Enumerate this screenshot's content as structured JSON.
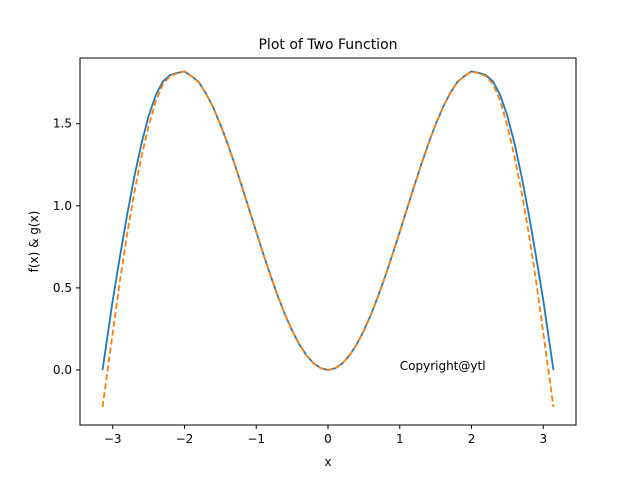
{
  "chart_data": {
    "type": "line",
    "title": "Plot of Two Function",
    "xlabel": "x",
    "ylabel": "f(x) & g(x)",
    "xlim": [
      -3.4558,
      3.4558
    ],
    "ylim": [
      -0.3354,
      1.9004
    ],
    "x_ticks": [
      -3,
      -2,
      -1,
      0,
      1,
      2,
      3
    ],
    "x_tick_labels": [
      "−3",
      "−2",
      "−1",
      "0",
      "1",
      "2",
      "3"
    ],
    "y_ticks": [
      0.0,
      0.5,
      1.0,
      1.5
    ],
    "y_tick_labels": [
      "0.0",
      "0.5",
      "1.0",
      "1.5"
    ],
    "grid": false,
    "legend": "none",
    "annotation": {
      "text": "Copyright@ytl",
      "x": 1.0,
      "y": 0.0
    },
    "series": [
      {
        "color": "#1f77b4",
        "style": "solid",
        "x": [
          -3.1416,
          -3.0,
          -2.9,
          -2.8,
          -2.7,
          -2.6,
          -2.5,
          -2.4,
          -2.3,
          -2.2,
          -2.1,
          -2.0,
          -1.9,
          -1.8,
          -1.7,
          -1.6,
          -1.5,
          -1.4,
          -1.3,
          -1.2,
          -1.1,
          -1.0,
          -0.9,
          -0.8,
          -0.7,
          -0.6,
          -0.5,
          -0.4,
          -0.3,
          -0.2,
          -0.1,
          0.0,
          0.1,
          0.2,
          0.3,
          0.4,
          0.5,
          0.6,
          0.7,
          0.8,
          0.9,
          1.0,
          1.1,
          1.2,
          1.3,
          1.4,
          1.5,
          1.6,
          1.7,
          1.8,
          1.9,
          2.0,
          2.1,
          2.2,
          2.3,
          2.4,
          2.5,
          2.6,
          2.7,
          2.8,
          2.9,
          3.0,
          3.1416
        ],
        "y": [
          0.0,
          0.4234,
          0.6891,
          0.9423,
          1.1742,
          1.3781,
          1.5462,
          1.6742,
          1.7576,
          1.7967,
          1.8096,
          1.8186,
          1.7896,
          1.7529,
          1.6848,
          1.5993,
          1.4962,
          1.3796,
          1.2529,
          1.1184,
          0.9801,
          0.8415,
          0.7049,
          0.5739,
          0.4509,
          0.3388,
          0.2397,
          0.1558,
          0.0887,
          0.0397,
          0.01,
          0.0,
          0.01,
          0.0397,
          0.0887,
          0.1558,
          0.2397,
          0.3388,
          0.4509,
          0.5739,
          0.7049,
          0.8415,
          0.9801,
          1.1184,
          1.2529,
          1.3796,
          1.4962,
          1.5993,
          1.6848,
          1.7529,
          1.7896,
          1.8186,
          1.8096,
          1.7967,
          1.7576,
          1.6742,
          1.5462,
          1.3781,
          1.1742,
          0.9423,
          0.6891,
          0.4234,
          0.0
        ]
      },
      {
        "color": "#ff7f0e",
        "style": "dashed",
        "x": [
          -3.1416,
          -3.0,
          -2.9,
          -2.8,
          -2.7,
          -2.6,
          -2.5,
          -2.4,
          -2.3,
          -2.2,
          -2.1,
          -2.0,
          -1.9,
          -1.8,
          -1.7,
          -1.6,
          -1.5,
          -1.4,
          -1.3,
          -1.2,
          -1.1,
          -1.0,
          -0.9,
          -0.8,
          -0.7,
          -0.6,
          -0.5,
          -0.4,
          -0.3,
          -0.2,
          -0.1,
          0.0,
          0.1,
          0.2,
          0.3,
          0.4,
          0.5,
          0.6,
          0.7,
          0.8,
          0.9,
          1.0,
          1.1,
          1.2,
          1.3,
          1.4,
          1.5,
          1.6,
          1.7,
          1.8,
          1.9,
          2.0,
          2.1,
          2.2,
          2.3,
          2.4,
          2.5,
          2.6,
          2.7,
          2.8,
          2.9,
          3.0,
          3.1416
        ],
        "y": [
          -0.2257,
          0.225,
          0.541,
          0.825,
          1.078,
          1.299,
          1.486,
          1.638,
          1.741,
          1.79,
          1.808,
          1.818,
          1.789,
          1.752,
          1.684,
          1.599,
          1.496,
          1.379,
          1.252,
          1.118,
          0.98,
          0.841,
          0.705,
          0.574,
          0.451,
          0.339,
          0.24,
          0.156,
          0.089,
          0.04,
          0.01,
          0.0,
          0.01,
          0.04,
          0.089,
          0.156,
          0.24,
          0.339,
          0.451,
          0.574,
          0.705,
          0.841,
          0.98,
          1.118,
          1.252,
          1.379,
          1.496,
          1.599,
          1.684,
          1.752,
          1.789,
          1.818,
          1.808,
          1.79,
          1.741,
          1.638,
          1.486,
          1.299,
          1.078,
          0.825,
          0.541,
          0.225,
          -0.2257
        ]
      }
    ]
  }
}
